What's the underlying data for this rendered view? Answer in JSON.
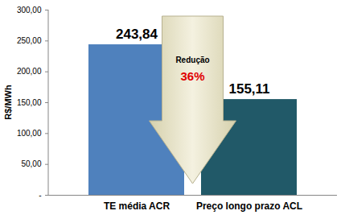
{
  "chart_data": {
    "type": "bar",
    "categories": [
      "TE média ACR",
      "Preço longo prazo ACL"
    ],
    "values": [
      243.84,
      155.11
    ],
    "value_labels": [
      "243,84",
      "155,11"
    ],
    "colors": [
      "#4f81bd",
      "#215968"
    ],
    "y_label": "R$/MWh",
    "ylim": [
      0,
      300
    ],
    "yticks": [
      {
        "value": 0,
        "label": "-"
      },
      {
        "value": 50,
        "label": "50,00"
      },
      {
        "value": 100,
        "label": "100,00"
      },
      {
        "value": 150,
        "label": "150,00"
      },
      {
        "value": 200,
        "label": "200,00"
      },
      {
        "value": 250,
        "label": "250,00"
      },
      {
        "value": 300,
        "label": "300,00"
      }
    ],
    "grid": false,
    "data_labels": true,
    "annotations": [
      "Redução",
      "36%"
    ]
  }
}
